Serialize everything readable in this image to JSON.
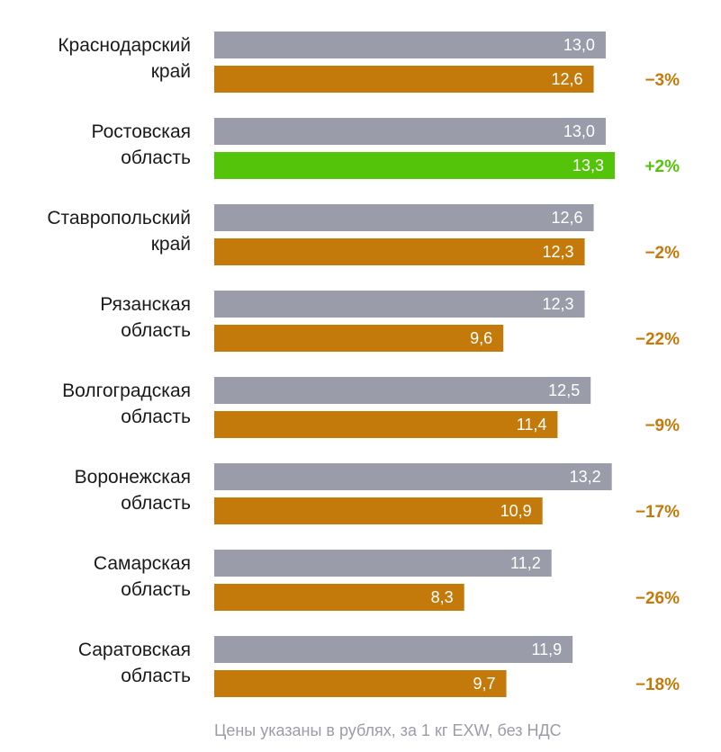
{
  "chart_data": {
    "type": "bar",
    "orientation": "horizontal",
    "series": [
      {
        "name": "base",
        "color": "#9a9ca9",
        "values": [
          13.0,
          13.0,
          12.6,
          12.3,
          12.5,
          13.2,
          11.2,
          11.9
        ]
      },
      {
        "name": "current",
        "values": [
          12.6,
          13.3,
          12.3,
          9.6,
          11.4,
          10.9,
          8.3,
          9.7
        ]
      }
    ],
    "categories": [
      [
        "Краснодарский",
        "край"
      ],
      [
        "Ростовская",
        "область"
      ],
      [
        "Ставропольский",
        "край"
      ],
      [
        "Рязанская",
        "область"
      ],
      [
        "Волгоградская",
        "область"
      ],
      [
        "Воронежская",
        "область"
      ],
      [
        "Самарская",
        "область"
      ],
      [
        "Саратовская",
        "область"
      ]
    ],
    "value_labels": {
      "base": [
        "13,0",
        "13,0",
        "12,6",
        "12,3",
        "12,5",
        "13,2",
        "11,2",
        "11,9"
      ],
      "current": [
        "12,6",
        "13,3",
        "12,3",
        "9,6",
        "11,4",
        "10,9",
        "8,3",
        "9,7"
      ]
    },
    "changes": [
      "−3%",
      "+2%",
      "−2%",
      "−22%",
      "−9%",
      "−17%",
      "−26%",
      "−18%"
    ],
    "colors": {
      "base": "#9a9ca9",
      "decrease": "#c47a0a",
      "increase": "#54c40a"
    },
    "xlim": [
      0,
      13.3
    ]
  },
  "footnote": "Цены указаны в рублях, за 1 кг EXW, без НДС"
}
